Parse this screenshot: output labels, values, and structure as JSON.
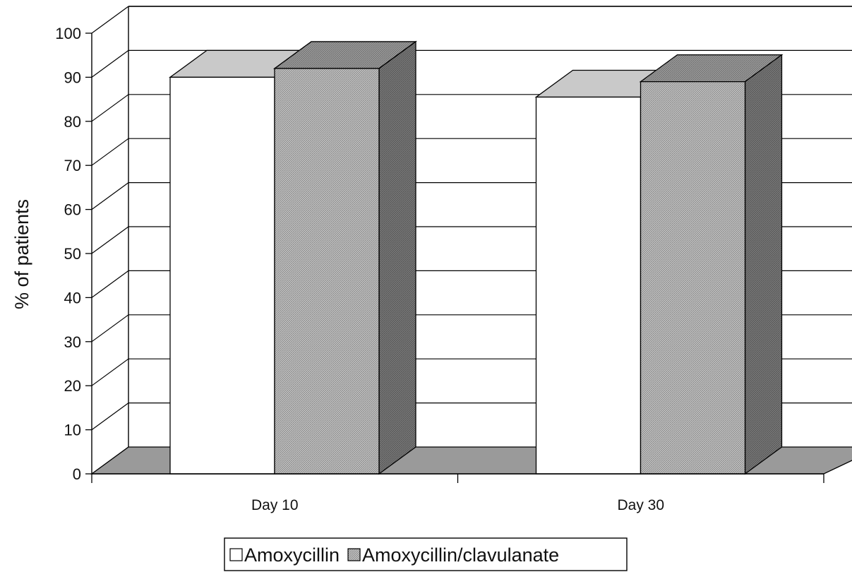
{
  "chart_data": {
    "type": "bar",
    "three_d": true,
    "title": "",
    "xlabel": "",
    "ylabel": "% of patients",
    "ylim": [
      0,
      100
    ],
    "yticks": [
      0,
      10,
      20,
      30,
      40,
      50,
      60,
      70,
      80,
      90,
      100
    ],
    "categories": [
      "Day 10",
      "Day 30"
    ],
    "series": [
      {
        "name": "Amoxycillin",
        "values": [
          90,
          85.5
        ],
        "color": "#ffffff",
        "pattern": "none"
      },
      {
        "name": "Amoxycillin/clavulanate",
        "values": [
          92,
          89
        ],
        "color": "#b5b5b5",
        "pattern": "fine-hatch"
      }
    ],
    "grid": true,
    "legend": "bottom-center"
  },
  "colors": {
    "floor": "#9a9a9a",
    "bar_top_light": "#c9c9c9",
    "bar_top_dark": "#8e8e8e",
    "bar_side_dark": "#6e6e6e"
  }
}
